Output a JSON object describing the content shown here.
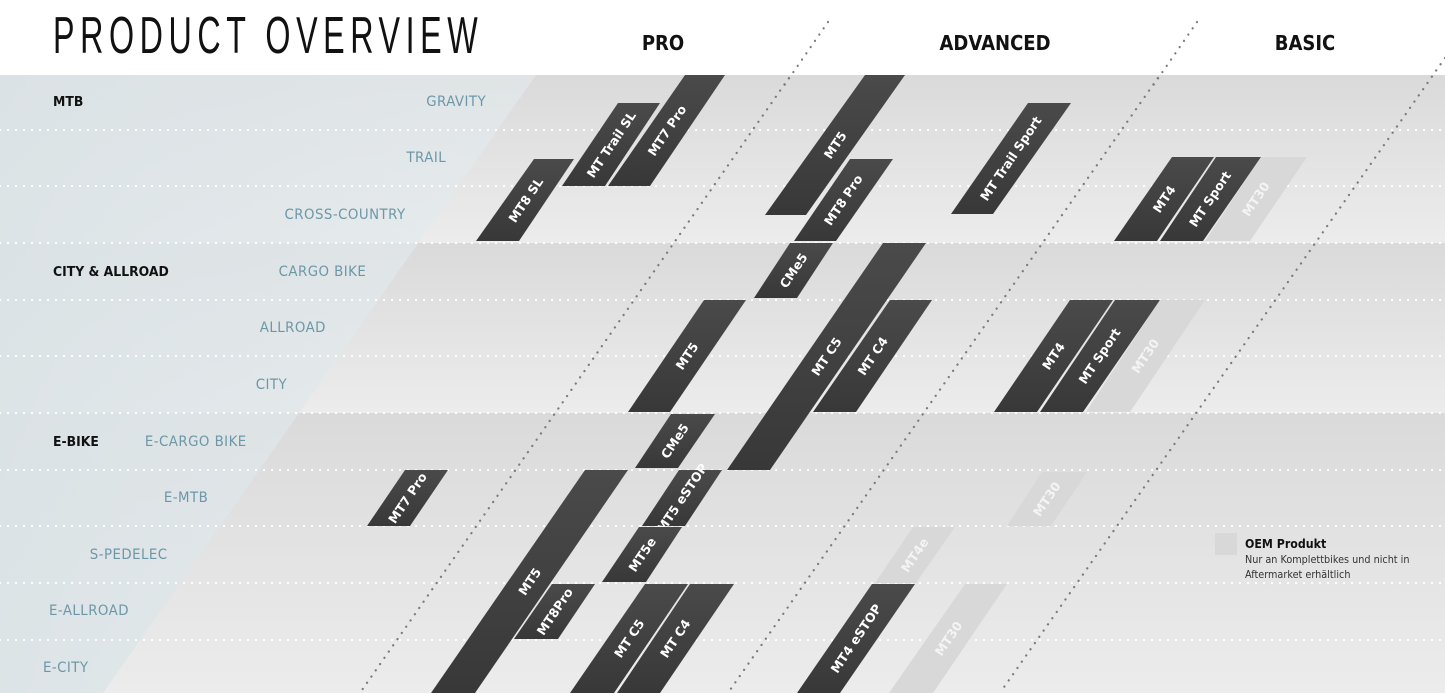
{
  "header": {
    "title": "PRODUCT OVERVIEW",
    "tiers": [
      {
        "label": "PRO"
      },
      {
        "label": "ADVANCED"
      },
      {
        "label": "BASIC"
      }
    ]
  },
  "sections": [
    {
      "label": "MTB",
      "categories": [
        "GRAVITY",
        "TRAIL",
        "CROSS-COUNTRY"
      ]
    },
    {
      "label": "CITY & ALLROAD",
      "categories": [
        "CARGO BIKE",
        "ALLROAD",
        "CITY"
      ]
    },
    {
      "label": "E-BIKE",
      "categories": [
        "E-CARGO BIKE",
        "E-MTB",
        "S-PEDELEC",
        "E-ALLROAD",
        "E-CITY"
      ]
    }
  ],
  "products": [
    {
      "label": "MT8 SL",
      "oem": false
    },
    {
      "label": "MT Trail SL",
      "oem": false
    },
    {
      "label": "MT7 Pro",
      "oem": false
    },
    {
      "label": "MT5",
      "oem": false
    },
    {
      "label": "MT8 Pro",
      "oem": false
    },
    {
      "label": "MT Trail Sport",
      "oem": false
    },
    {
      "label": "MT4",
      "oem": false
    },
    {
      "label": "MT Sport",
      "oem": false
    },
    {
      "label": "MT30",
      "oem": true
    },
    {
      "label": "CMe5",
      "oem": false
    },
    {
      "label": "MT5",
      "oem": false
    },
    {
      "label": "MT C5",
      "oem": false
    },
    {
      "label": "MT C4",
      "oem": false
    },
    {
      "label": "MT4",
      "oem": false
    },
    {
      "label": "MT Sport",
      "oem": false
    },
    {
      "label": "MT30",
      "oem": true
    },
    {
      "label": "CMe5",
      "oem": false
    },
    {
      "label": "MT7 Pro",
      "oem": false
    },
    {
      "label": "MT5",
      "oem": false
    },
    {
      "label": "MT5 eSTOP",
      "oem": false
    },
    {
      "label": "MT5e",
      "oem": false
    },
    {
      "label": "MT8Pro",
      "oem": false
    },
    {
      "label": "MT C5",
      "oem": false
    },
    {
      "label": "MT C4",
      "oem": false
    },
    {
      "label": "MT4e",
      "oem": true
    },
    {
      "label": "MT4 eSTOP",
      "oem": false
    },
    {
      "label": "MT30",
      "oem": true
    },
    {
      "label": "MT30",
      "oem": true
    }
  ],
  "legend": {
    "title": "OEM Produkt",
    "text": "Nur an Komplettbikes und nicht in Aftermarket erhältlich"
  },
  "colors": {
    "product": "#3f3f3f",
    "oem_product": "#d8d8d8",
    "category_text": "#6c97a7",
    "left_tint": "#dfe7ea"
  }
}
